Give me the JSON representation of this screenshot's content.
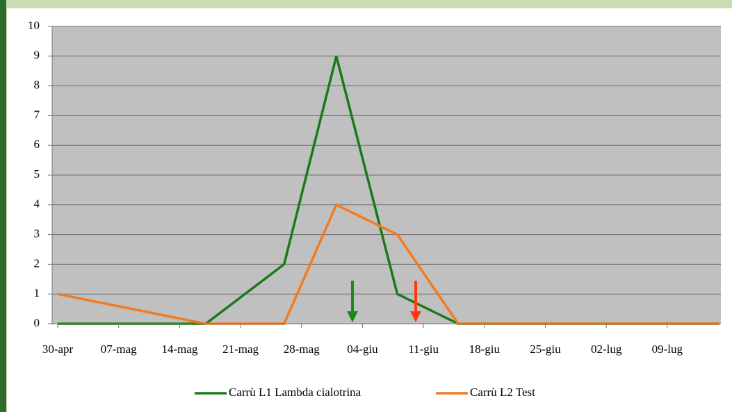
{
  "chart_data": {
    "type": "line",
    "x": [
      "30-apr",
      "17-mag",
      "26-mag",
      "01-giu",
      "08-giu",
      "15-giu",
      "15-lug"
    ],
    "series": [
      {
        "name": "Carrù L1 Lambda cialotrina",
        "color": "#1a7a1a",
        "values": [
          0,
          0,
          2,
          9,
          1,
          0,
          0
        ]
      },
      {
        "name": "Carrù L2 Test",
        "color": "#f47a20",
        "values": [
          1,
          0,
          0,
          4,
          3,
          0,
          0
        ]
      }
    ],
    "xlim": [
      "30-apr",
      "15-lug"
    ],
    "xticks": [
      "30-apr",
      "07-mag",
      "14-mag",
      "21-mag",
      "28-mag",
      "04-giu",
      "11-giu",
      "18-giu",
      "25-giu",
      "02-lug",
      "09-lug"
    ],
    "ylim": [
      0,
      10
    ],
    "yticks": [
      0,
      1,
      2,
      3,
      4,
      5,
      6,
      7,
      8,
      9,
      10
    ],
    "grid": true,
    "legend": "bottom"
  }
}
